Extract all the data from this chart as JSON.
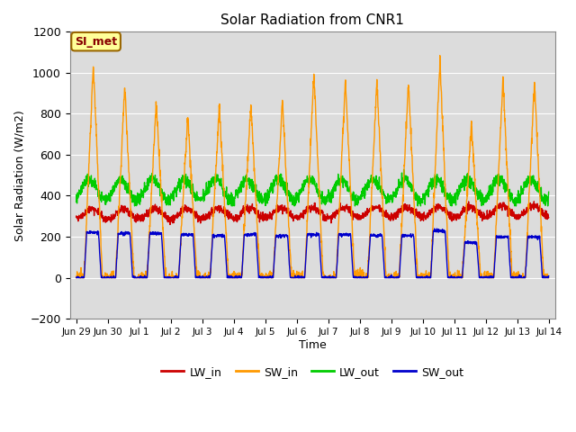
{
  "title": "Solar Radiation from CNR1",
  "xlabel": "Time",
  "ylabel": "Solar Radiation (W/m2)",
  "ylim": [
    -200,
    1200
  ],
  "yticks": [
    -200,
    0,
    200,
    400,
    600,
    800,
    1000,
    1200
  ],
  "colors": {
    "LW_in": "#cc0000",
    "SW_in": "#ff9900",
    "LW_out": "#00cc00",
    "SW_out": "#0000cc"
  },
  "bg_color": "#dcdcdc",
  "annotation_text": "SI_met",
  "annotation_facecolor": "#ffff99",
  "annotation_edgecolor": "#996600",
  "annotation_textcolor": "#880000",
  "n_days": 15,
  "points_per_day": 144,
  "sw_in_peaks": [
    1040,
    940,
    860,
    790,
    840,
    850,
    870,
    1000,
    970,
    960,
    960,
    1060,
    750,
    970,
    960
  ],
  "sw_out_peaks": [
    220,
    215,
    215,
    210,
    205,
    210,
    205,
    210,
    210,
    205,
    205,
    230,
    170,
    200,
    200
  ],
  "lw_in_base": 310,
  "lw_out_base": 430,
  "line_width": 1.0,
  "xtick_labels": [
    "Jun 29",
    "Jun 30",
    "Jul 1",
    "Jul 2",
    "Jul 3",
    "Jul 4",
    "Jul 5",
    "Jul 6",
    "Jul 7",
    "Jul 8",
    "Jul 9",
    "Jul 10",
    "Jul 11",
    "Jul 12",
    "Jul 13",
    "Jul 14"
  ]
}
